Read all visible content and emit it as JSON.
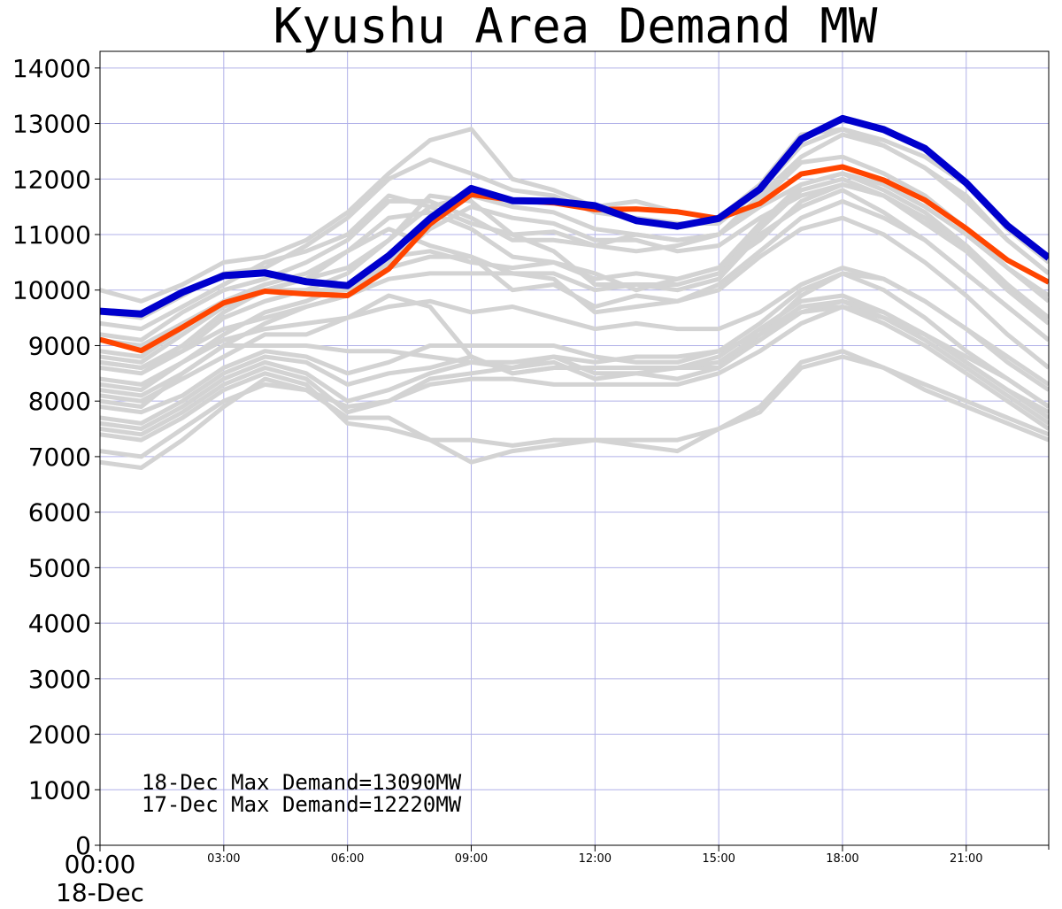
{
  "chart_data": {
    "type": "line",
    "title": "Kyushu Area Demand MW",
    "xlabel": "",
    "ylabel": "",
    "ylim": [
      0,
      14300
    ],
    "xlim": [
      0,
      23
    ],
    "grid": true,
    "y_ticks": [
      "0",
      "1000",
      "2000",
      "3000",
      "4000",
      "5000",
      "6000",
      "7000",
      "8000",
      "9000",
      "10000",
      "11000",
      "12000",
      "13000",
      "14000"
    ],
    "x_ticks": [
      {
        "hour": 0,
        "label": "00:00",
        "sublabel": "18-Dec"
      },
      {
        "hour": 3,
        "label": "03:00"
      },
      {
        "hour": 6,
        "label": "06:00"
      },
      {
        "hour": 9,
        "label": "09:00"
      },
      {
        "hour": 12,
        "label": "12:00"
      },
      {
        "hour": 15,
        "label": "15:00"
      },
      {
        "hour": 18,
        "label": "18:00"
      },
      {
        "hour": 21,
        "label": "21:00"
      }
    ],
    "hours": [
      0,
      1,
      2,
      3,
      4,
      5,
      6,
      7,
      8,
      9,
      10,
      11,
      12,
      13,
      14,
      15,
      16,
      17,
      18,
      19,
      20,
      21,
      22,
      23
    ],
    "series": [
      {
        "role": "today",
        "color": "#0000cc",
        "values": [
          9620,
          9570,
          9960,
          10260,
          10310,
          10150,
          10080,
          10620,
          11290,
          11830,
          11610,
          11600,
          11520,
          11250,
          11150,
          11290,
          11820,
          12720,
          13090,
          12890,
          12550,
          11930,
          11160,
          10580
        ]
      },
      {
        "role": "yesterday",
        "color": "#ff4500",
        "values": [
          9110,
          8910,
          9330,
          9770,
          9980,
          9930,
          9900,
          10380,
          11190,
          11720,
          11620,
          11570,
          11450,
          11460,
          11410,
          11290,
          11560,
          12090,
          12220,
          11980,
          11620,
          11110,
          10540,
          10140
        ]
      }
    ],
    "history": {
      "color": "#d3d3d3",
      "values": [
        [
          10000,
          9800,
          10100,
          10500,
          10600,
          10900,
          11400,
          12100,
          12700,
          12900,
          12000,
          11800,
          11500,
          11600,
          11400,
          11300,
          11900,
          12800,
          12900,
          12700,
          12400,
          11900,
          11100,
          10500
        ],
        [
          9600,
          9500,
          9900,
          10300,
          10400,
          10800,
          11300,
          12000,
          12350,
          12100,
          11800,
          11700,
          11400,
          11300,
          11200,
          11200,
          11800,
          12600,
          12900,
          12600,
          12200,
          11700,
          10900,
          10300
        ],
        [
          9400,
          9300,
          9700,
          10100,
          10500,
          10700,
          11000,
          11700,
          11500,
          11200,
          11000,
          11050,
          10800,
          10700,
          10800,
          11000,
          11600,
          12300,
          12400,
          12100,
          11700,
          11100,
          10400,
          9900
        ],
        [
          9200,
          9100,
          9600,
          10000,
          10200,
          10500,
          10900,
          11600,
          11600,
          11300,
          10900,
          10900,
          10800,
          11000,
          10900,
          11000,
          11700,
          12400,
          12800,
          12600,
          12200,
          11600,
          10900,
          10300
        ],
        [
          8900,
          8800,
          9300,
          9800,
          10100,
          10300,
          10700,
          11300,
          11400,
          11100,
          10600,
          10500,
          10200,
          10300,
          10200,
          10400,
          11200,
          11900,
          12100,
          11800,
          11400,
          10800,
          10100,
          9500
        ],
        [
          8800,
          8700,
          9200,
          9700,
          10000,
          10200,
          10700,
          11100,
          10800,
          10600,
          10300,
          10300,
          10000,
          10100,
          10100,
          10300,
          11100,
          11800,
          12000,
          11700,
          11200,
          10700,
          10000,
          9400
        ],
        [
          8700,
          8600,
          9000,
          9600,
          10000,
          10000,
          10000,
          10600,
          10700,
          10500,
          10400,
          10500,
          10300,
          10000,
          10200,
          10400,
          10900,
          11600,
          11900,
          11700,
          11300,
          10700,
          10000,
          9400
        ],
        [
          8600,
          8500,
          8900,
          9500,
          9800,
          10000,
          10300,
          10900,
          11700,
          11600,
          11000,
          10700,
          10100,
          10100,
          10000,
          10200,
          11000,
          11500,
          11800,
          11400,
          10900,
          10300,
          9700,
          9100
        ],
        [
          8300,
          8200,
          8700,
          9200,
          9600,
          9800,
          10100,
          10400,
          10600,
          10600,
          10000,
          10100,
          9700,
          9900,
          9800,
          10100,
          10700,
          11300,
          11600,
          11300,
          10900,
          10300,
          9700,
          9100
        ],
        [
          8000,
          7900,
          8500,
          9000,
          9400,
          9700,
          9900,
          10200,
          10300,
          10300,
          10300,
          10200,
          9600,
          9700,
          9800,
          10000,
          10600,
          11100,
          11300,
          11000,
          10500,
          9900,
          9200,
          8600
        ],
        [
          8100,
          8000,
          8400,
          8800,
          9200,
          9200,
          9500,
          9900,
          9700,
          8800,
          8500,
          8600,
          8600,
          8600,
          8600,
          8600,
          9200,
          9900,
          10300,
          10200,
          9800,
          9300,
          8700,
          8200
        ],
        [
          7900,
          7800,
          8100,
          8600,
          8900,
          8800,
          8500,
          8700,
          9000,
          9000,
          9000,
          9000,
          8800,
          8700,
          8700,
          8900,
          9400,
          10000,
          10300,
          10000,
          9500,
          8900,
          8400,
          7900
        ],
        [
          7700,
          7600,
          8000,
          8500,
          8800,
          8700,
          8300,
          8500,
          8600,
          8800,
          8500,
          8600,
          8600,
          8600,
          8600,
          8800,
          9300,
          9800,
          9900,
          9600,
          9200,
          8700,
          8200,
          7700
        ],
        [
          7600,
          7500,
          7900,
          8400,
          8700,
          8500,
          8000,
          8200,
          8500,
          8700,
          8600,
          8700,
          8400,
          8500,
          8600,
          8700,
          9200,
          9700,
          9800,
          9500,
          9100,
          8600,
          8100,
          7600
        ],
        [
          7500,
          7400,
          7800,
          8300,
          8600,
          8400,
          7800,
          8000,
          8400,
          8500,
          8600,
          8800,
          8500,
          8500,
          8400,
          8600,
          9100,
          9600,
          9700,
          9400,
          9000,
          8500,
          8000,
          7500
        ],
        [
          7400,
          7300,
          7700,
          8200,
          8500,
          8300,
          7600,
          7500,
          7300,
          7300,
          7200,
          7300,
          7300,
          7300,
          7300,
          7500,
          7900,
          8700,
          8900,
          8600,
          8200,
          7900,
          7600,
          7300
        ],
        [
          7100,
          7000,
          7500,
          8000,
          8300,
          8200,
          7700,
          7700,
          7300,
          6900,
          7100,
          7200,
          7300,
          7200,
          7100,
          7500,
          7800,
          8600,
          8800,
          8600,
          8300,
          8000,
          7700,
          7400
        ],
        [
          6900,
          6800,
          7300,
          7900,
          8400,
          8200,
          7900,
          8000,
          8300,
          8400,
          8400,
          8300,
          8300,
          8300,
          8300,
          8500,
          8900,
          9400,
          9700,
          9500,
          9200,
          8800,
          8400,
          7900
        ],
        [
          8700,
          8600,
          8900,
          9300,
          9500,
          9700,
          9900,
          10500,
          11100,
          11500,
          11300,
          11200,
          10900,
          10900,
          10700,
          10800,
          11300,
          11700,
          11900,
          11700,
          11300,
          10800,
          10100,
          9500
        ],
        [
          9100,
          9000,
          9400,
          9800,
          10000,
          10200,
          10400,
          10900,
          11500,
          11700,
          11500,
          11400,
          11100,
          11000,
          10900,
          11000,
          11500,
          11900,
          12100,
          11900,
          11500,
          11000,
          10400,
          9800
        ],
        [
          8400,
          8300,
          8700,
          9100,
          9300,
          9400,
          9500,
          9700,
          9800,
          9600,
          9700,
          9500,
          9300,
          9400,
          9300,
          9300,
          9600,
          10100,
          10400,
          10200,
          9800,
          9300,
          8800,
          8300
        ],
        [
          8200,
          8100,
          8500,
          9000,
          9000,
          9000,
          8900,
          8900,
          8800,
          8700,
          8700,
          8800,
          8700,
          8800,
          8800,
          8900,
          9200,
          9600,
          9800,
          9600,
          9200,
          8700,
          8200,
          7800
        ]
      ]
    },
    "annotations": [
      "18-Dec Max Demand=13090MW",
      "17-Dec Max Demand=12220MW"
    ]
  }
}
